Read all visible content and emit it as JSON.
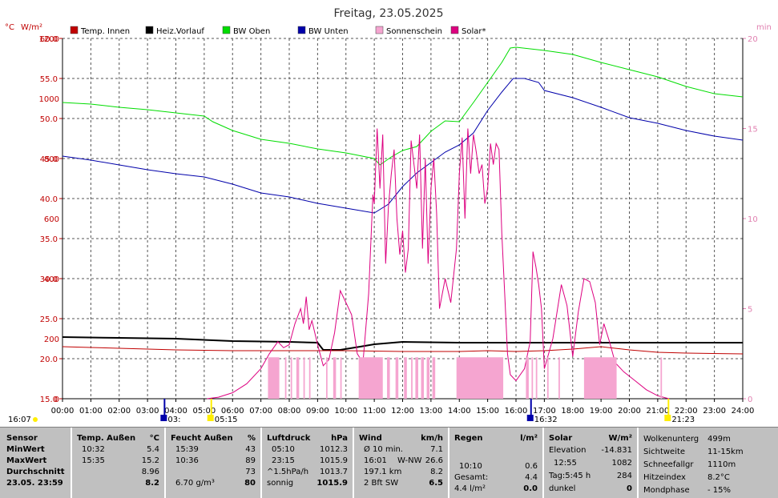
{
  "title": "Freitag, 23.05.2025",
  "colors": {
    "temp_innen": "#c00000",
    "heiz_vorlauf": "#000000",
    "bw_oben": "#00dd00",
    "bw_unten": "#0000aa",
    "sonnenschein": "#f5a5d0",
    "solar": "#dd0080",
    "axis_left": "#c00000",
    "axis_right": "#e080b0"
  },
  "chart_data": {
    "type": "line",
    "title": "Freitag, 23.05.2025",
    "y_left_unit": "°C",
    "y_left2_unit": "W/m²",
    "y_right_unit": "min",
    "ylim_temp": [
      15,
      60
    ],
    "ylim_solar": [
      0,
      1200
    ],
    "ylim_min": [
      0,
      20
    ],
    "temp_ticks": [
      "60.0",
      "55.0",
      "50.0",
      "45.0",
      "40.0",
      "35.0",
      "30.0",
      "25.0",
      "20.0",
      "15.0"
    ],
    "solar_ticks": [
      "1200",
      "1000",
      "800",
      "600",
      "400",
      "200",
      "0"
    ],
    "min_ticks": [
      "20",
      "15",
      "10",
      "5",
      "0"
    ],
    "x_ticks": [
      "00:00",
      "01:00",
      "02:00",
      "03:00",
      "04:00",
      "05:00",
      "06:00",
      "07:00",
      "08:00",
      "09:00",
      "10:00",
      "11:00",
      "12:00",
      "13:00",
      "14:00",
      "15:00",
      "16:00",
      "17:00",
      "18:00",
      "19:00",
      "20:00",
      "21:00",
      "22:00",
      "23:00",
      "24:00"
    ],
    "legend": [
      "Temp. Innen",
      "Heiz.Vorlauf",
      "BW Oben",
      "BW Unten",
      "Sonnenschein",
      "Solar*"
    ],
    "series": [
      {
        "name": "BW Oben",
        "axis": "temp",
        "points": [
          [
            0,
            52
          ],
          [
            1,
            51.8
          ],
          [
            2,
            51.4
          ],
          [
            3,
            51.1
          ],
          [
            4,
            50.7
          ],
          [
            5,
            50.3
          ],
          [
            5.3,
            49.6
          ],
          [
            6,
            48.5
          ],
          [
            7,
            47.4
          ],
          [
            8,
            46.9
          ],
          [
            9,
            46.2
          ],
          [
            10,
            45.7
          ],
          [
            11,
            45
          ],
          [
            11.2,
            44.2
          ],
          [
            11.6,
            45.2
          ],
          [
            12,
            46
          ],
          [
            12.5,
            46.5
          ],
          [
            13,
            48.4
          ],
          [
            13.5,
            49.7
          ],
          [
            14,
            49.6
          ],
          [
            14.5,
            52
          ],
          [
            15,
            54.5
          ],
          [
            15.5,
            57
          ],
          [
            15.8,
            58.8
          ],
          [
            16,
            58.9
          ],
          [
            17,
            58.5
          ],
          [
            18,
            58
          ],
          [
            19,
            57
          ],
          [
            20,
            56.1
          ],
          [
            21,
            55.2
          ],
          [
            22,
            54
          ],
          [
            23,
            53.1
          ],
          [
            24,
            52.7
          ]
        ]
      },
      {
        "name": "BW Unten",
        "axis": "temp",
        "points": [
          [
            0,
            45.3
          ],
          [
            1,
            44.8
          ],
          [
            2,
            44.2
          ],
          [
            3,
            43.6
          ],
          [
            4,
            43.1
          ],
          [
            5,
            42.7
          ],
          [
            6,
            41.8
          ],
          [
            7,
            40.7
          ],
          [
            8,
            40.2
          ],
          [
            9,
            39.4
          ],
          [
            10,
            38.8
          ],
          [
            11,
            38.2
          ],
          [
            11.5,
            39.3
          ],
          [
            12,
            41.5
          ],
          [
            12.5,
            43.2
          ],
          [
            13,
            44.5
          ],
          [
            13.5,
            45.8
          ],
          [
            14,
            46.7
          ],
          [
            14.5,
            48.2
          ],
          [
            15,
            51
          ],
          [
            15.5,
            53.3
          ],
          [
            15.9,
            55
          ],
          [
            16.3,
            55
          ],
          [
            16.8,
            54.5
          ],
          [
            17,
            53.5
          ],
          [
            18,
            52.6
          ],
          [
            19,
            51.4
          ],
          [
            20,
            50.1
          ],
          [
            21,
            49.4
          ],
          [
            22,
            48.5
          ],
          [
            23,
            47.8
          ],
          [
            24,
            47.3
          ]
        ]
      },
      {
        "name": "Heiz.Vorlauf",
        "axis": "temp",
        "points": [
          [
            0,
            22.7
          ],
          [
            2,
            22.6
          ],
          [
            4,
            22.5
          ],
          [
            6,
            22.2
          ],
          [
            8,
            22.1
          ],
          [
            9,
            22
          ],
          [
            9.2,
            21.1
          ],
          [
            9.8,
            21.1
          ],
          [
            10.5,
            21.5
          ],
          [
            11,
            21.8
          ],
          [
            12,
            22.1
          ],
          [
            14,
            22
          ],
          [
            16,
            22
          ],
          [
            18,
            22
          ],
          [
            20,
            22
          ],
          [
            22,
            22
          ],
          [
            24,
            22
          ]
        ]
      },
      {
        "name": "Temp. Innen",
        "axis": "temp",
        "points": [
          [
            0,
            21.5
          ],
          [
            1,
            21.4
          ],
          [
            2,
            21.3
          ],
          [
            4,
            21.1
          ],
          [
            6,
            21
          ],
          [
            8,
            21
          ],
          [
            10,
            21
          ],
          [
            12,
            20.9
          ],
          [
            14,
            20.9
          ],
          [
            15,
            21
          ],
          [
            16,
            20.9
          ],
          [
            17,
            21
          ],
          [
            18,
            21.2
          ],
          [
            19,
            21.5
          ],
          [
            19.5,
            21.3
          ],
          [
            20,
            21.1
          ],
          [
            21,
            20.8
          ],
          [
            22,
            20.7
          ],
          [
            24,
            20.6
          ]
        ]
      },
      {
        "name": "Solar*",
        "axis": "solar",
        "points": [
          [
            5.1,
            0
          ],
          [
            5.5,
            5
          ],
          [
            6,
            20
          ],
          [
            6.5,
            50
          ],
          [
            7,
            100
          ],
          [
            7.3,
            150
          ],
          [
            7.6,
            190
          ],
          [
            7.8,
            170
          ],
          [
            8,
            180
          ],
          [
            8.2,
            250
          ],
          [
            8.4,
            300
          ],
          [
            8.5,
            250
          ],
          [
            8.6,
            340
          ],
          [
            8.7,
            230
          ],
          [
            8.8,
            260
          ],
          [
            9,
            180
          ],
          [
            9.2,
            110
          ],
          [
            9.4,
            130
          ],
          [
            9.6,
            220
          ],
          [
            9.8,
            360
          ],
          [
            10,
            320
          ],
          [
            10.2,
            280
          ],
          [
            10.4,
            150
          ],
          [
            10.6,
            120
          ],
          [
            10.8,
            350
          ],
          [
            10.95,
            680
          ],
          [
            11,
            650
          ],
          [
            11.1,
            900
          ],
          [
            11.2,
            700
          ],
          [
            11.3,
            880
          ],
          [
            11.4,
            450
          ],
          [
            11.5,
            640
          ],
          [
            11.6,
            750
          ],
          [
            11.7,
            830
          ],
          [
            11.8,
            600
          ],
          [
            11.9,
            480
          ],
          [
            12,
            560
          ],
          [
            12.1,
            420
          ],
          [
            12.2,
            500
          ],
          [
            12.3,
            860
          ],
          [
            12.4,
            780
          ],
          [
            12.5,
            700
          ],
          [
            12.6,
            880
          ],
          [
            12.7,
            500
          ],
          [
            12.8,
            800
          ],
          [
            12.9,
            450
          ],
          [
            13,
            700
          ],
          [
            13.1,
            800
          ],
          [
            13.2,
            620
          ],
          [
            13.3,
            300
          ],
          [
            13.5,
            400
          ],
          [
            13.7,
            320
          ],
          [
            13.9,
            500
          ],
          [
            14,
            750
          ],
          [
            14.1,
            870
          ],
          [
            14.2,
            600
          ],
          [
            14.3,
            900
          ],
          [
            14.4,
            750
          ],
          [
            14.5,
            880
          ],
          [
            14.6,
            820
          ],
          [
            14.7,
            750
          ],
          [
            14.8,
            780
          ],
          [
            14.9,
            650
          ],
          [
            15,
            700
          ],
          [
            15.1,
            850
          ],
          [
            15.2,
            780
          ],
          [
            15.3,
            850
          ],
          [
            15.4,
            830
          ],
          [
            15.5,
            550
          ],
          [
            15.6,
            350
          ],
          [
            15.7,
            150
          ],
          [
            15.8,
            80
          ],
          [
            16,
            60
          ],
          [
            16.3,
            100
          ],
          [
            16.5,
            190
          ],
          [
            16.6,
            490
          ],
          [
            16.7,
            440
          ],
          [
            16.8,
            380
          ],
          [
            16.9,
            300
          ],
          [
            17,
            100
          ],
          [
            17.3,
            200
          ],
          [
            17.6,
            380
          ],
          [
            17.8,
            310
          ],
          [
            18,
            140
          ],
          [
            18.2,
            290
          ],
          [
            18.4,
            400
          ],
          [
            18.6,
            390
          ],
          [
            18.8,
            320
          ],
          [
            18.95,
            180
          ],
          [
            19.1,
            250
          ],
          [
            19.3,
            190
          ],
          [
            19.5,
            120
          ],
          [
            19.8,
            90
          ],
          [
            20.2,
            60
          ],
          [
            20.6,
            30
          ],
          [
            21,
            10
          ],
          [
            21.4,
            0
          ]
        ]
      },
      {
        "name": "Sonnenschein",
        "axis": "min",
        "type": "bars",
        "intervals": [
          [
            7.25,
            7.65
          ],
          [
            7.85,
            7.9
          ],
          [
            8.05,
            8.1
          ],
          [
            8.25,
            8.35
          ],
          [
            8.5,
            8.55
          ],
          [
            8.7,
            8.75
          ],
          [
            9.3,
            9.35
          ],
          [
            9.55,
            9.65
          ],
          [
            9.8,
            9.85
          ],
          [
            10.45,
            11.3
          ],
          [
            11.45,
            11.55
          ],
          [
            11.75,
            11.85
          ],
          [
            12.05,
            12.15
          ],
          [
            12.3,
            12.35
          ],
          [
            12.45,
            12.55
          ],
          [
            12.65,
            12.75
          ],
          [
            12.85,
            12.95
          ],
          [
            13.05,
            13.15
          ],
          [
            13.9,
            15.55
          ],
          [
            16.35,
            16.45
          ],
          [
            16.55,
            16.6
          ],
          [
            16.7,
            16.75
          ],
          [
            17.1,
            17.15
          ],
          [
            17.5,
            17.55
          ],
          [
            18.4,
            19.55
          ],
          [
            21.1,
            21.15
          ]
        ],
        "level": 2.3
      }
    ],
    "markers": [
      {
        "x": 3.6,
        "label": "03:",
        "color": "#0000aa"
      },
      {
        "x": 5.25,
        "label": "05:15",
        "color": "#ffee00"
      },
      {
        "x": 16.53,
        "label": "16:32",
        "color": "#0000aa"
      },
      {
        "x": 21.38,
        "label": "21:23",
        "color": "#ffee00"
      }
    ],
    "left_label": "16:07"
  },
  "panel": {
    "sensor": {
      "header": "Sensor",
      "rows": [
        "MinWert",
        "MaxWert",
        "Durchschnitt",
        "23.05.  23:59"
      ]
    },
    "temp": {
      "header": "Temp. Außen",
      "unit": "°C",
      "rows": [
        [
          "10:32",
          "5.4"
        ],
        [
          "15:35",
          "15.2"
        ],
        [
          "",
          "8.96"
        ],
        [
          "",
          "8.2"
        ]
      ]
    },
    "feucht": {
      "header": "Feucht Außen",
      "unit": "%",
      "rows": [
        [
          "15:39",
          "43"
        ],
        [
          "10:36",
          "89"
        ],
        [
          "",
          "73"
        ],
        [
          "6.70 g/m³",
          "80"
        ]
      ]
    },
    "luftdruck": {
      "header": "Luftdruck",
      "unit": "hPa",
      "rows": [
        [
          "05:10",
          "1012.3"
        ],
        [
          "23:15",
          "1015.9"
        ],
        [
          "^1.5hPa/h",
          "1013.7"
        ],
        [
          "sonnig",
          "1015.9"
        ]
      ]
    },
    "wind": {
      "header": "Wind",
      "unit": "km/h",
      "rows": [
        [
          "Ø 10 min.",
          "",
          "7.1"
        ],
        [
          "16:01",
          "W-NW",
          "26.6"
        ],
        [
          "197.1 km",
          "",
          "8.2"
        ],
        [
          "2 Bft SW",
          "",
          "6.5"
        ]
      ]
    },
    "regen": {
      "header": "Regen",
      "unit": "l/m²",
      "rows": [
        [
          "",
          ""
        ],
        [
          "10:10",
          "0.6"
        ],
        [
          "Gesamt:",
          "4.4"
        ],
        [
          "4.4 l/m²",
          "0.0"
        ]
      ]
    },
    "solar": {
      "header": "Solar",
      "unit": "W/m²",
      "rows": [
        [
          "Elevation",
          "-14.831"
        ],
        [
          "12:55",
          "1082"
        ],
        [
          "Tag:5:45 h",
          "284"
        ],
        [
          "dunkel",
          "0"
        ]
      ]
    },
    "misc": {
      "rows": [
        [
          "Wolkenunterg",
          "499m"
        ],
        [
          "Sichtweite",
          "11-15km"
        ],
        [
          "Schneefallgr",
          "1110m"
        ],
        [
          "Hitzeindex",
          "8.2°C"
        ],
        [
          "Mondphase",
          "- 15%"
        ]
      ]
    }
  }
}
